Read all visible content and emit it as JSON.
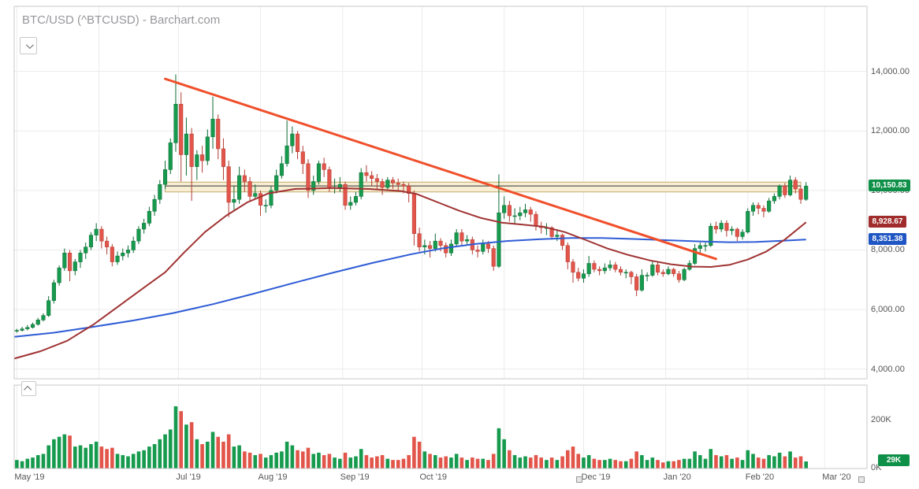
{
  "title": "BTC/USD (^BTCUSD) - Barchart.com",
  "colors": {
    "up": "#169a4e",
    "up_stroke": "#0c6b34",
    "down": "#e2554a",
    "down_stroke": "#b23c33",
    "ma_fast": "#a03333",
    "ma_slow": "#2e5cd5",
    "trendline": "#f04f2b",
    "band_fill": "#f7eed4",
    "band_border": "#c2ab6e",
    "price_line": "#333333",
    "badge_green": "#0f9048",
    "badge_red": "#a02c2c",
    "badge_blue": "#1f56c4",
    "grid": "#ececec",
    "border": "#c8c8c8",
    "axis_text": "#555555",
    "title_text": "#97979b"
  },
  "y_axis": {
    "ticks": [
      {
        "label": "14,000.00",
        "value": 14000
      },
      {
        "label": "12,000.00",
        "value": 12000
      },
      {
        "label": "10,000.00",
        "value": 10000
      },
      {
        "label": "8,000.00",
        "value": 8000
      },
      {
        "label": "6,000.00",
        "value": 6000
      },
      {
        "label": "4,000.00",
        "value": 4000
      }
    ]
  },
  "x_axis": {
    "labeled_ticks": [
      {
        "label": "May '19",
        "day": 1
      },
      {
        "label": "Jul '19",
        "day": 62
      },
      {
        "label": "Aug '19",
        "day": 93
      },
      {
        "label": "Sep '19",
        "day": 124
      },
      {
        "label": "Oct '19",
        "day": 154
      },
      {
        "label": "Dec '19",
        "day": 215
      },
      {
        "label": "Jan '20",
        "day": 246
      },
      {
        "label": "Feb '20",
        "day": 277
      },
      {
        "label": "Mar '20",
        "day": 306
      }
    ],
    "gridline_days": [
      1,
      32,
      62,
      93,
      124,
      154,
      185,
      215,
      246,
      277,
      306
    ]
  },
  "badges": {
    "last_price": "10,150.83",
    "ma_fast": "8,928.67",
    "ma_slow": "8,351.38",
    "volume": "29K"
  },
  "badge_anchors": {
    "last_price": 10150.83,
    "ma_fast": 8928.67,
    "ma_slow": 8351.38,
    "volume_k": 29
  },
  "volume_axis": {
    "tick_label": "200K",
    "tick_value": 200,
    "zero_label": "0K"
  },
  "chart_data": {
    "type": "candlestick",
    "symbol": "BTC/USD (^BTCUSD)",
    "days_per_candle": 2,
    "total_days": 322,
    "price_range": [
      3700,
      14150
    ],
    "volume_unit": "K",
    "candles": [
      [
        5280,
        5350,
        5220,
        5300,
        35
      ],
      [
        5300,
        5420,
        5260,
        5350,
        30
      ],
      [
        5350,
        5480,
        5300,
        5400,
        40
      ],
      [
        5400,
        5560,
        5360,
        5500,
        45
      ],
      [
        5500,
        5720,
        5460,
        5650,
        55
      ],
      [
        5650,
        5870,
        5600,
        5800,
        60
      ],
      [
        5800,
        6450,
        5750,
        6300,
        95
      ],
      [
        6300,
        7000,
        6200,
        6900,
        120
      ],
      [
        6900,
        7480,
        6800,
        7400,
        130
      ],
      [
        7400,
        8050,
        7300,
        7900,
        140
      ],
      [
        7900,
        8000,
        6950,
        7300,
        135
      ],
      [
        7300,
        7700,
        7150,
        7600,
        90
      ],
      [
        7600,
        8000,
        7400,
        7900,
        95
      ],
      [
        7900,
        8250,
        7700,
        8100,
        85
      ],
      [
        8100,
        8600,
        8000,
        8500,
        100
      ],
      [
        8500,
        8900,
        8300,
        8700,
        110
      ],
      [
        8700,
        8800,
        8050,
        8300,
        90
      ],
      [
        8300,
        8450,
        7850,
        8100,
        80
      ],
      [
        8100,
        8200,
        7450,
        7600,
        85
      ],
      [
        7600,
        7950,
        7500,
        7800,
        60
      ],
      [
        7800,
        8050,
        7650,
        7900,
        55
      ],
      [
        7900,
        8150,
        7750,
        8000,
        50
      ],
      [
        8000,
        8450,
        7900,
        8300,
        60
      ],
      [
        8300,
        8800,
        8200,
        8700,
        70
      ],
      [
        8700,
        9050,
        8550,
        8900,
        75
      ],
      [
        8900,
        9450,
        8800,
        9300,
        90
      ],
      [
        9300,
        9850,
        9150,
        9700,
        100
      ],
      [
        9700,
        10350,
        9550,
        10200,
        120
      ],
      [
        10200,
        11000,
        10050,
        10700,
        140
      ],
      [
        10700,
        11750,
        10550,
        11600,
        160
      ],
      [
        11600,
        13900,
        11300,
        12900,
        255
      ],
      [
        12900,
        13300,
        10300,
        11200,
        235
      ],
      [
        11200,
        12450,
        10500,
        11900,
        180
      ],
      [
        11900,
        12100,
        9650,
        10800,
        190
      ],
      [
        10800,
        11350,
        10350,
        11200,
        120
      ],
      [
        11200,
        11500,
        10600,
        11000,
        100
      ],
      [
        11000,
        12050,
        10850,
        11800,
        110
      ],
      [
        11800,
        13150,
        11400,
        12400,
        150
      ],
      [
        12400,
        12550,
        11050,
        11400,
        130
      ],
      [
        11400,
        11750,
        10350,
        10800,
        110
      ],
      [
        10800,
        11000,
        9100,
        9600,
        140
      ],
      [
        9600,
        10150,
        9350,
        9700,
        90
      ],
      [
        9700,
        10800,
        9550,
        10500,
        95
      ],
      [
        10500,
        10700,
        9950,
        10300,
        70
      ],
      [
        10300,
        10450,
        9650,
        9800,
        65
      ],
      [
        9800,
        10200,
        9700,
        9900,
        55
      ],
      [
        9900,
        10000,
        9150,
        9500,
        60
      ],
      [
        9500,
        9700,
        9250,
        9500,
        45
      ],
      [
        9500,
        10150,
        9400,
        10000,
        55
      ],
      [
        10000,
        10700,
        9900,
        10500,
        65
      ],
      [
        10500,
        11150,
        10400,
        10900,
        70
      ],
      [
        10900,
        12350,
        10800,
        11500,
        110
      ],
      [
        11500,
        12150,
        11250,
        11900,
        95
      ],
      [
        11900,
        12000,
        11050,
        11300,
        75
      ],
      [
        11300,
        11500,
        10550,
        10900,
        70
      ],
      [
        10900,
        11050,
        9750,
        10000,
        85
      ],
      [
        10000,
        10500,
        9850,
        10300,
        60
      ],
      [
        10300,
        11000,
        10200,
        10900,
        65
      ],
      [
        10900,
        11100,
        10450,
        10700,
        55
      ],
      [
        10700,
        10800,
        9950,
        10100,
        60
      ],
      [
        10100,
        10400,
        9900,
        10100,
        45
      ],
      [
        10100,
        10450,
        9950,
        10200,
        40
      ],
      [
        10200,
        10300,
        9350,
        9500,
        65
      ],
      [
        9500,
        9800,
        9350,
        9600,
        45
      ],
      [
        9600,
        9950,
        9500,
        9800,
        50
      ],
      [
        9800,
        10750,
        9700,
        10600,
        80
      ],
      [
        10600,
        10850,
        10300,
        10500,
        55
      ],
      [
        10500,
        10650,
        10150,
        10400,
        45
      ],
      [
        10400,
        10550,
        10050,
        10300,
        50
      ],
      [
        10300,
        10400,
        9850,
        10100,
        55
      ],
      [
        10100,
        10450,
        10000,
        10350,
        40
      ],
      [
        10350,
        10450,
        10050,
        10250,
        35
      ],
      [
        10250,
        10400,
        10000,
        10200,
        35
      ],
      [
        10200,
        10300,
        9900,
        10150,
        40
      ],
      [
        10150,
        10250,
        9600,
        9900,
        55
      ],
      [
        9900,
        10000,
        8150,
        8550,
        130
      ],
      [
        8550,
        8750,
        7950,
        8100,
        110
      ],
      [
        8100,
        8350,
        7850,
        8150,
        70
      ],
      [
        8150,
        8300,
        7750,
        8050,
        60
      ],
      [
        8050,
        8550,
        7950,
        8300,
        55
      ],
      [
        8300,
        8400,
        7950,
        8150,
        45
      ],
      [
        8150,
        8250,
        7750,
        7900,
        50
      ],
      [
        7900,
        8350,
        7800,
        8200,
        45
      ],
      [
        8200,
        8700,
        8100,
        8580,
        60
      ],
      [
        8580,
        8700,
        8150,
        8300,
        45
      ],
      [
        8300,
        8500,
        8150,
        8350,
        35
      ],
      [
        8350,
        8450,
        7850,
        8000,
        45
      ],
      [
        8000,
        8150,
        7750,
        7950,
        40
      ],
      [
        7950,
        8350,
        7850,
        8200,
        40
      ],
      [
        8200,
        8300,
        7900,
        8050,
        35
      ],
      [
        8050,
        8150,
        7300,
        7450,
        60
      ],
      [
        7450,
        10540,
        7400,
        9250,
        165
      ],
      [
        9250,
        9800,
        9050,
        9500,
        120
      ],
      [
        9500,
        9650,
        8950,
        9150,
        75
      ],
      [
        9150,
        9400,
        8850,
        9150,
        55
      ],
      [
        9150,
        9450,
        9000,
        9250,
        45
      ],
      [
        9250,
        9550,
        9100,
        9350,
        50
      ],
      [
        9350,
        9450,
        8950,
        9200,
        45
      ],
      [
        9200,
        9300,
        8650,
        8800,
        55
      ],
      [
        8800,
        8950,
        8550,
        8750,
        45
      ],
      [
        8750,
        8900,
        8500,
        8750,
        35
      ],
      [
        8750,
        8800,
        8350,
        8450,
        45
      ],
      [
        8450,
        8700,
        8300,
        8500,
        35
      ],
      [
        8500,
        8550,
        8000,
        8150,
        50
      ],
      [
        8150,
        8250,
        7350,
        7600,
        75
      ],
      [
        7600,
        7700,
        6900,
        7250,
        90
      ],
      [
        7250,
        7400,
        6950,
        7050,
        60
      ],
      [
        7050,
        7350,
        6900,
        7200,
        45
      ],
      [
        7200,
        7800,
        7100,
        7550,
        55
      ],
      [
        7550,
        7650,
        7250,
        7350,
        40
      ],
      [
        7350,
        7450,
        7150,
        7300,
        35
      ],
      [
        7300,
        7550,
        7200,
        7400,
        35
      ],
      [
        7400,
        7650,
        7300,
        7500,
        40
      ],
      [
        7500,
        7600,
        7250,
        7350,
        35
      ],
      [
        7350,
        7450,
        7150,
        7250,
        30
      ],
      [
        7250,
        7350,
        7050,
        7250,
        30
      ],
      [
        7250,
        7300,
        6850,
        7100,
        40
      ],
      [
        7100,
        7200,
        6450,
        6650,
        70
      ],
      [
        6650,
        7350,
        6600,
        7150,
        55
      ],
      [
        7150,
        7250,
        6950,
        7150,
        35
      ],
      [
        7150,
        7650,
        7100,
        7500,
        45
      ],
      [
        7500,
        7600,
        7150,
        7250,
        35
      ],
      [
        7250,
        7350,
        7100,
        7200,
        25
      ],
      [
        7200,
        7450,
        7150,
        7350,
        30
      ],
      [
        7350,
        7400,
        7100,
        7200,
        30
      ],
      [
        7200,
        7300,
        6900,
        7000,
        35
      ],
      [
        7000,
        7400,
        6950,
        7350,
        40
      ],
      [
        7350,
        7650,
        7300,
        7550,
        40
      ],
      [
        7550,
        8200,
        7500,
        8050,
        70
      ],
      [
        8050,
        8250,
        7850,
        8150,
        55
      ],
      [
        8150,
        8250,
        7950,
        8150,
        40
      ],
      [
        8150,
        8900,
        8100,
        8800,
        80
      ],
      [
        8800,
        8950,
        8550,
        8700,
        55
      ],
      [
        8700,
        9000,
        8600,
        8900,
        50
      ],
      [
        8900,
        9000,
        8450,
        8650,
        55
      ],
      [
        8650,
        8800,
        8500,
        8700,
        40
      ],
      [
        8700,
        8750,
        8300,
        8450,
        45
      ],
      [
        8450,
        8700,
        8350,
        8600,
        35
      ],
      [
        8600,
        9400,
        8550,
        9300,
        75
      ],
      [
        9300,
        9600,
        9150,
        9500,
        60
      ],
      [
        9500,
        9600,
        9200,
        9400,
        45
      ],
      [
        9400,
        9500,
        9100,
        9300,
        40
      ],
      [
        9300,
        9750,
        9250,
        9650,
        55
      ],
      [
        9650,
        9900,
        9550,
        9800,
        50
      ],
      [
        9800,
        10200,
        9700,
        10150,
        65
      ],
      [
        10150,
        10250,
        9750,
        9850,
        50
      ],
      [
        9850,
        10500,
        9800,
        10350,
        70
      ],
      [
        10350,
        10450,
        9900,
        10050,
        45
      ],
      [
        10050,
        10150,
        9550,
        9700,
        50
      ],
      [
        9700,
        10280,
        9650,
        10150,
        29
      ]
    ],
    "ma_fast_points": [
      [
        0,
        4350
      ],
      [
        10,
        4600
      ],
      [
        20,
        4950
      ],
      [
        30,
        5500
      ],
      [
        40,
        6150
      ],
      [
        50,
        6800
      ],
      [
        57,
        7250
      ],
      [
        64,
        7900
      ],
      [
        72,
        8600
      ],
      [
        80,
        9150
      ],
      [
        88,
        9600
      ],
      [
        96,
        9900
      ],
      [
        106,
        10050
      ],
      [
        120,
        10080
      ],
      [
        134,
        10050
      ],
      [
        146,
        9980
      ],
      [
        152,
        9880
      ],
      [
        160,
        9600
      ],
      [
        168,
        9320
      ],
      [
        176,
        9080
      ],
      [
        184,
        8920
      ],
      [
        192,
        8850
      ],
      [
        200,
        8780
      ],
      [
        208,
        8600
      ],
      [
        216,
        8330
      ],
      [
        224,
        8050
      ],
      [
        232,
        7830
      ],
      [
        240,
        7650
      ],
      [
        248,
        7520
      ],
      [
        256,
        7440
      ],
      [
        263,
        7430
      ],
      [
        270,
        7500
      ],
      [
        277,
        7680
      ],
      [
        284,
        7950
      ],
      [
        291,
        8350
      ],
      [
        299,
        8929
      ]
    ],
    "ma_slow_points": [
      [
        0,
        5080
      ],
      [
        15,
        5220
      ],
      [
        30,
        5420
      ],
      [
        45,
        5630
      ],
      [
        60,
        5880
      ],
      [
        75,
        6180
      ],
      [
        90,
        6520
      ],
      [
        105,
        6880
      ],
      [
        120,
        7230
      ],
      [
        135,
        7560
      ],
      [
        150,
        7860
      ],
      [
        162,
        8060
      ],
      [
        174,
        8200
      ],
      [
        186,
        8300
      ],
      [
        198,
        8360
      ],
      [
        210,
        8400
      ],
      [
        222,
        8400
      ],
      [
        234,
        8370
      ],
      [
        246,
        8330
      ],
      [
        258,
        8290
      ],
      [
        270,
        8260
      ],
      [
        280,
        8270
      ],
      [
        290,
        8310
      ],
      [
        299,
        8351
      ]
    ],
    "trendline": {
      "from_day": 57,
      "from_price": 13750,
      "to_day": 265,
      "to_price": 7700
    },
    "band": {
      "from_day": 57,
      "to_day": 297,
      "top_price": 10280,
      "bottom_price": 9950
    },
    "last_price_line": 10150.83
  }
}
